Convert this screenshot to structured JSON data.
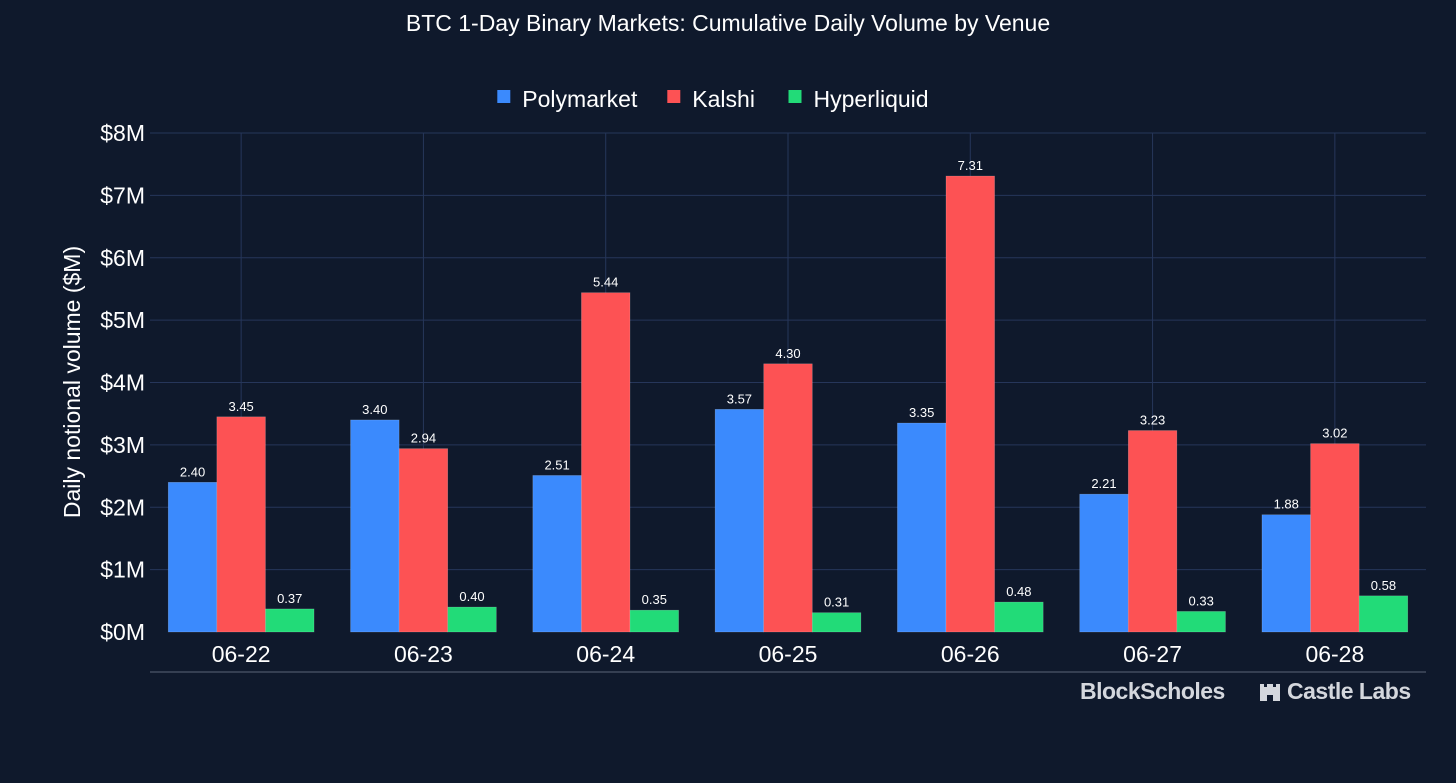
{
  "chart_data": {
    "type": "bar",
    "title": "BTC 1-Day Binary Markets: Cumulative Daily Volume by Venue",
    "ylabel": "Daily notional volume ($M)",
    "xlabel": "",
    "categories": [
      "06-22",
      "06-23",
      "06-24",
      "06-25",
      "06-26",
      "06-27",
      "06-28"
    ],
    "series": [
      {
        "name": "Polymarket",
        "color": "#3b8afd",
        "values": [
          2.4,
          3.4,
          2.51,
          3.57,
          3.35,
          2.21,
          1.88
        ],
        "labels": [
          "2.40",
          "3.40",
          "2.51",
          "3.57",
          "3.35",
          "2.21",
          "1.88"
        ]
      },
      {
        "name": "Kalshi",
        "color": "#fd5254",
        "values": [
          3.45,
          2.94,
          5.44,
          4.3,
          7.31,
          3.23,
          3.02
        ],
        "labels": [
          "3.45",
          "2.94",
          "5.44",
          "4.30",
          "7.31",
          "3.23",
          "3.02"
        ]
      },
      {
        "name": "Hyperliquid",
        "color": "#22db78",
        "values": [
          0.37,
          0.4,
          0.35,
          0.31,
          0.48,
          0.33,
          0.58
        ],
        "labels": [
          "0.37",
          "0.40",
          "0.35",
          "0.31",
          "0.48",
          "0.33",
          "0.58"
        ]
      }
    ],
    "ylim": [
      0,
      8
    ],
    "yticks": [
      0,
      1,
      2,
      3,
      4,
      5,
      6,
      7,
      8
    ],
    "ytick_labels": [
      "$0M",
      "$1M",
      "$2M",
      "$3M",
      "$4M",
      "$5M",
      "$6M",
      "$7M",
      "$8M"
    ],
    "grid": true,
    "legend_position": "top-center"
  },
  "branding": {
    "logo_1": "BlockScholes",
    "logo_2": "Castle Labs"
  },
  "colors": {
    "background": "#0f192c",
    "grid": "#26365a",
    "text": "#ffffff"
  }
}
